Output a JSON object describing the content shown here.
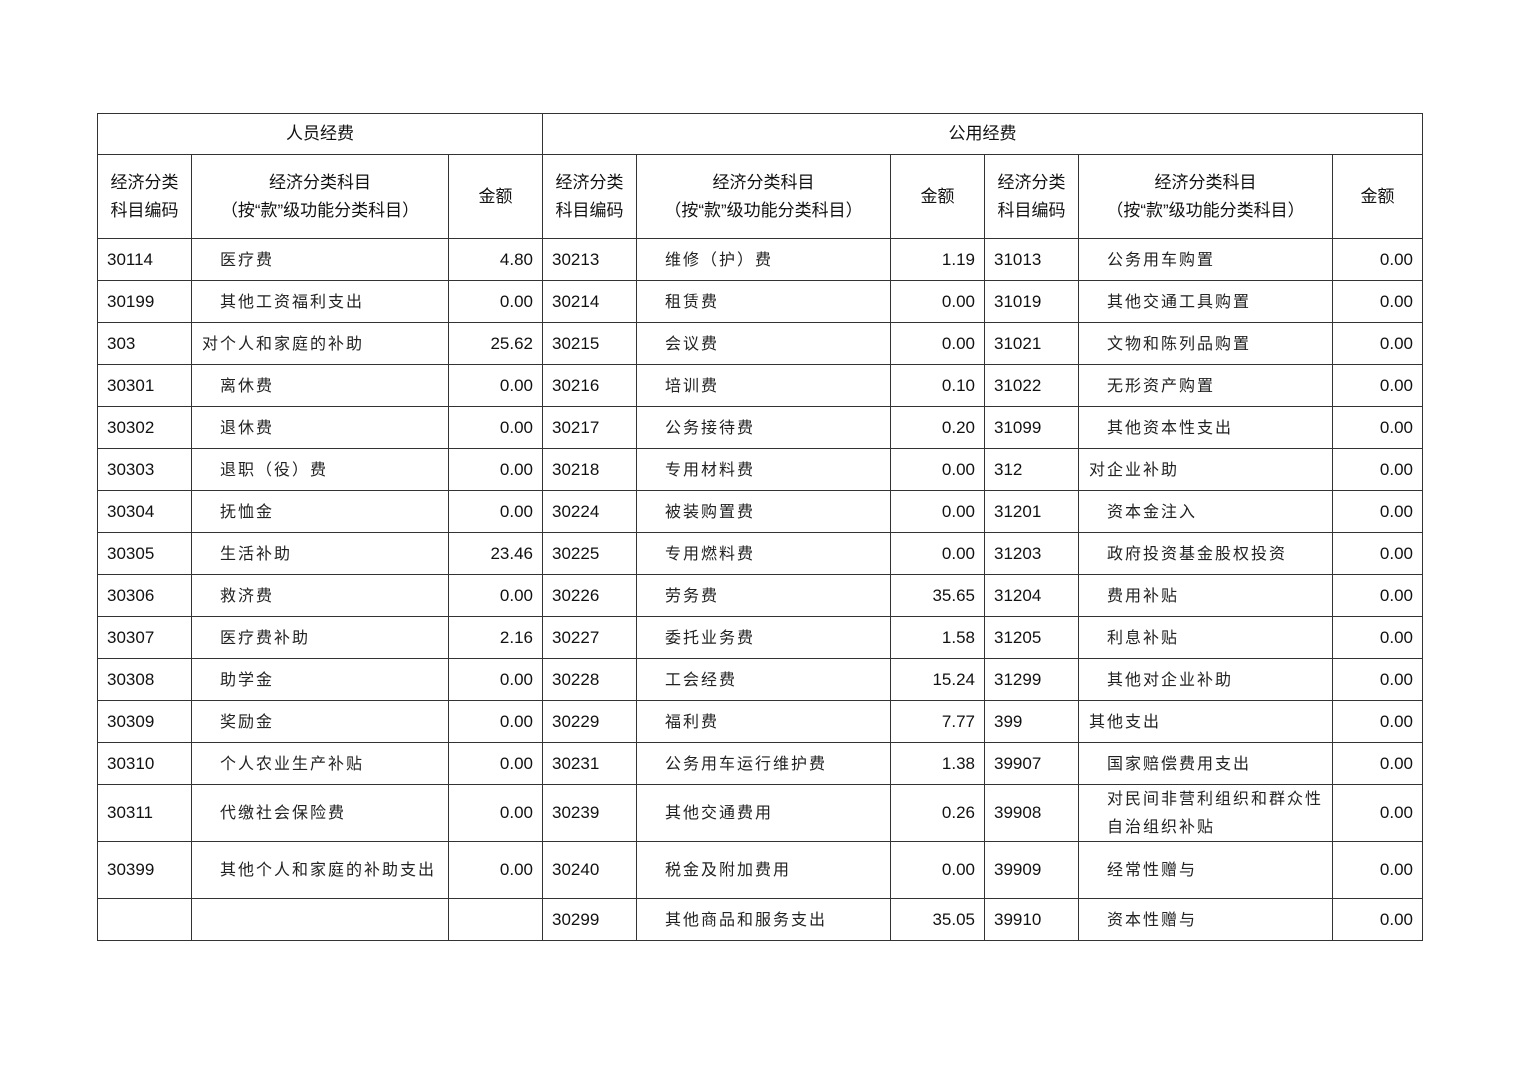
{
  "groups": {
    "personnel": "人员经费",
    "public": "公用经费"
  },
  "headers": {
    "code": "经济分类科目编码",
    "code_line1": "经济分类",
    "code_line2": "科目编码",
    "name_line1": "经济分类科目",
    "name_line2": "（按“款”级功能分类科目）",
    "amount": "金额"
  },
  "rows": [
    [
      [
        "30114",
        "医疗费",
        "4.80"
      ],
      [
        "30213",
        "维修（护）费",
        "1.19"
      ],
      [
        "31013",
        "公务用车购置",
        "0.00"
      ]
    ],
    [
      [
        "30199",
        "其他工资福利支出",
        "0.00"
      ],
      [
        "30214",
        "租赁费",
        "0.00"
      ],
      [
        "31019",
        "其他交通工具购置",
        "0.00"
      ]
    ],
    [
      [
        "303",
        "对个人和家庭的补助",
        "25.62"
      ],
      [
        "30215",
        "会议费",
        "0.00"
      ],
      [
        "31021",
        "文物和陈列品购置",
        "0.00"
      ]
    ],
    [
      [
        "30301",
        "离休费",
        "0.00"
      ],
      [
        "30216",
        "培训费",
        "0.10"
      ],
      [
        "31022",
        "无形资产购置",
        "0.00"
      ]
    ],
    [
      [
        "30302",
        "退休费",
        "0.00"
      ],
      [
        "30217",
        "公务接待费",
        "0.20"
      ],
      [
        "31099",
        "其他资本性支出",
        "0.00"
      ]
    ],
    [
      [
        "30303",
        "退职（役）费",
        "0.00"
      ],
      [
        "30218",
        "专用材料费",
        "0.00"
      ],
      [
        "312",
        "对企业补助",
        "0.00"
      ]
    ],
    [
      [
        "30304",
        "抚恤金",
        "0.00"
      ],
      [
        "30224",
        "被装购置费",
        "0.00"
      ],
      [
        "31201",
        "资本金注入",
        "0.00"
      ]
    ],
    [
      [
        "30305",
        "生活补助",
        "23.46"
      ],
      [
        "30225",
        "专用燃料费",
        "0.00"
      ],
      [
        "31203",
        "政府投资基金股权投资",
        "0.00"
      ]
    ],
    [
      [
        "30306",
        "救济费",
        "0.00"
      ],
      [
        "30226",
        "劳务费",
        "35.65"
      ],
      [
        "31204",
        "费用补贴",
        "0.00"
      ]
    ],
    [
      [
        "30307",
        "医疗费补助",
        "2.16"
      ],
      [
        "30227",
        "委托业务费",
        "1.58"
      ],
      [
        "31205",
        "利息补贴",
        "0.00"
      ]
    ],
    [
      [
        "30308",
        "助学金",
        "0.00"
      ],
      [
        "30228",
        "工会经费",
        "15.24"
      ],
      [
        "31299",
        "其他对企业补助",
        "0.00"
      ]
    ],
    [
      [
        "30309",
        "奖励金",
        "0.00"
      ],
      [
        "30229",
        "福利费",
        "7.77"
      ],
      [
        "399",
        "其他支出",
        "0.00"
      ]
    ],
    [
      [
        "30310",
        "个人农业生产补贴",
        "0.00"
      ],
      [
        "30231",
        "公务用车运行维护费",
        "1.38"
      ],
      [
        "39907",
        "国家赔偿费用支出",
        "0.00"
      ]
    ],
    [
      [
        "30311",
        "代缴社会保险费",
        "0.00"
      ],
      [
        "30239",
        "其他交通费用",
        "0.26"
      ],
      [
        "39908",
        "对民间非营利组织和群众性自治组织补贴",
        "0.00"
      ]
    ],
    [
      [
        "30399",
        "其他个人和家庭的补助支出",
        "0.00"
      ],
      [
        "30240",
        "税金及附加费用",
        "0.00"
      ],
      [
        "39909",
        "经常性赠与",
        "0.00"
      ]
    ],
    [
      [
        "",
        "",
        ""
      ],
      [
        "30299",
        "其他商品和服务支出",
        "35.05"
      ],
      [
        "39910",
        "资本性赠与",
        "0.00"
      ]
    ]
  ]
}
